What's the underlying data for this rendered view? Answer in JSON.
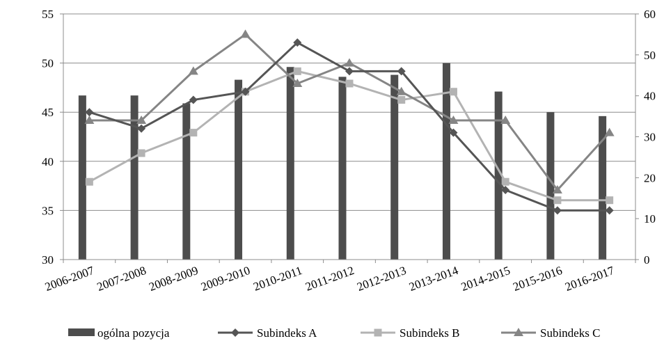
{
  "chart_data": {
    "type": "bar+line",
    "categories": [
      "2006-2007",
      "2007-2008",
      "2008-2009",
      "2009-2010",
      "2010-2011",
      "2011-2012",
      "2012-2013",
      "2013-2014",
      "2014-2015",
      "2015-2016",
      "2016-2017"
    ],
    "bar_series": {
      "name": "ogólna pozycja",
      "axis": "left",
      "color": "#4d4d4d",
      "values": [
        46.7,
        46.7,
        45.9,
        48.3,
        49.6,
        48.6,
        48.8,
        50.0,
        47.1,
        45.0,
        44.6
      ]
    },
    "line_series": [
      {
        "name": "Subindeks A",
        "axis": "right",
        "marker": "diamond",
        "color": "#555555",
        "values": [
          36,
          32,
          39,
          41,
          53,
          46,
          46,
          31,
          17,
          12,
          12
        ]
      },
      {
        "name": "Subindeks B",
        "axis": "right",
        "marker": "square",
        "color": "#b3b3b3",
        "values": [
          19,
          26,
          31,
          41,
          46,
          43,
          39,
          41,
          19,
          14.5,
          14.5
        ]
      },
      {
        "name": "Subindeks C",
        "axis": "right",
        "marker": "triangle",
        "color": "#858585",
        "values": [
          34,
          34,
          46,
          55,
          43,
          48,
          41,
          34,
          34,
          17,
          31
        ]
      }
    ],
    "y_left": {
      "min": 30,
      "max": 55,
      "ticks": [
        "30",
        "35",
        "40",
        "45",
        "50",
        "55"
      ]
    },
    "y_right": {
      "min": 0,
      "max": 60,
      "ticks": [
        "0",
        "10",
        "20",
        "30",
        "40",
        "50",
        "60"
      ]
    },
    "grid": "horizontal",
    "legend": "bottom",
    "legend_items": [
      "ogólna pozycja",
      "Subindeks A",
      "Subindeks B",
      "Subindeks C"
    ]
  }
}
